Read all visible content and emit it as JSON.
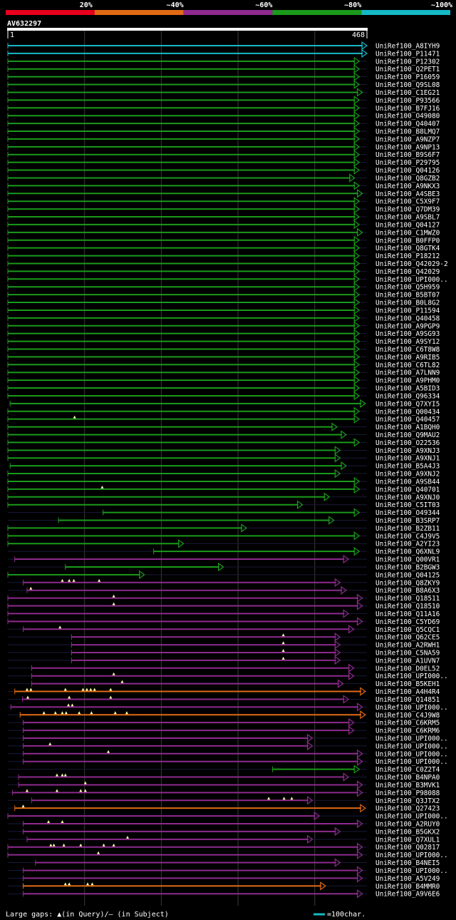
{
  "chart_data": {
    "type": "alignment-overview",
    "legend_labels": [
      "20%",
      "~40%",
      "~60%",
      "~80%",
      "~100%"
    ],
    "legend_colors": [
      "#e8001c",
      "#e06a14",
      "#8e2a8e",
      "#1b9a1b",
      "#16b9c6"
    ],
    "query": {
      "name": "AV632297",
      "start_label": "1",
      "end_label": "468",
      "length": 468
    },
    "footer": {
      "gaps_label": "Large gaps: ▲(in Query)/– (in Subject)",
      "scale_label": "=100char."
    },
    "hits": [
      {
        "name": "UniRef100_A8IYH9",
        "start": 0,
        "end": 468,
        "color": "cyan",
        "gaps": []
      },
      {
        "name": "UniRef100_P11471",
        "start": 0,
        "end": 468,
        "color": "cyan",
        "gaps": []
      },
      {
        "name": "UniRef100_P12302",
        "start": 0,
        "end": 458,
        "color": "green",
        "gaps": []
      },
      {
        "name": "UniRef100_Q2PET1",
        "start": 0,
        "end": 458,
        "color": "green",
        "gaps": []
      },
      {
        "name": "UniRef100_P16059",
        "start": 0,
        "end": 458,
        "color": "green",
        "gaps": []
      },
      {
        "name": "UniRef100_Q9SL08",
        "start": 0,
        "end": 458,
        "color": "green",
        "gaps": []
      },
      {
        "name": "UniRef100_C1EG21",
        "start": 0,
        "end": 462,
        "color": "green",
        "gaps": []
      },
      {
        "name": "UniRef100_P93566",
        "start": 0,
        "end": 458,
        "color": "green",
        "gaps": []
      },
      {
        "name": "UniRef100_B7FJ16",
        "start": 0,
        "end": 458,
        "color": "green",
        "gaps": []
      },
      {
        "name": "UniRef100_O49080",
        "start": 0,
        "end": 458,
        "color": "green",
        "gaps": []
      },
      {
        "name": "UniRef100_Q40407",
        "start": 0,
        "end": 458,
        "color": "green",
        "gaps": []
      },
      {
        "name": "UniRef100_B8LMQ7",
        "start": 0,
        "end": 458,
        "color": "green",
        "gaps": []
      },
      {
        "name": "UniRef100_A9NZP7",
        "start": 0,
        "end": 458,
        "color": "green",
        "gaps": []
      },
      {
        "name": "UniRef100_A9NP13",
        "start": 0,
        "end": 458,
        "color": "green",
        "gaps": []
      },
      {
        "name": "UniRef100_B9S6F7",
        "start": 0,
        "end": 458,
        "color": "green",
        "gaps": []
      },
      {
        "name": "UniRef100_P29795",
        "start": 0,
        "end": 458,
        "color": "green",
        "gaps": []
      },
      {
        "name": "UniRef100_Q04126",
        "start": 0,
        "end": 458,
        "color": "green",
        "gaps": []
      },
      {
        "name": "UniRef100_Q8GZB2",
        "start": 0,
        "end": 452,
        "color": "green",
        "gaps": []
      },
      {
        "name": "UniRef100_A9NKX3",
        "start": 0,
        "end": 458,
        "color": "green",
        "gaps": []
      },
      {
        "name": "UniRef100_A4SBE3",
        "start": 0,
        "end": 462,
        "color": "green",
        "gaps": []
      },
      {
        "name": "UniRef100_C5X9F7",
        "start": 0,
        "end": 458,
        "color": "green",
        "gaps": []
      },
      {
        "name": "UniRef100_Q7DM39",
        "start": 0,
        "end": 458,
        "color": "green",
        "gaps": []
      },
      {
        "name": "UniRef100_A9SBL7",
        "start": 0,
        "end": 458,
        "color": "green",
        "gaps": []
      },
      {
        "name": "UniRef100_Q04127",
        "start": 0,
        "end": 458,
        "color": "green",
        "gaps": []
      },
      {
        "name": "UniRef100_C1MWZ0",
        "start": 0,
        "end": 462,
        "color": "green",
        "gaps": []
      },
      {
        "name": "UniRef100_B0FFP0",
        "start": 0,
        "end": 458,
        "color": "green",
        "gaps": []
      },
      {
        "name": "UniRef100_Q8GTK4",
        "start": 0,
        "end": 458,
        "color": "green",
        "gaps": []
      },
      {
        "name": "UniRef100_P18212",
        "start": 0,
        "end": 458,
        "color": "green",
        "gaps": []
      },
      {
        "name": "UniRef100_Q42029-2",
        "start": 0,
        "end": 458,
        "color": "green",
        "gaps": []
      },
      {
        "name": "UniRef100_Q42029",
        "start": 0,
        "end": 458,
        "color": "green",
        "gaps": []
      },
      {
        "name": "UniRef100_UPI000..",
        "start": 0,
        "end": 458,
        "color": "green",
        "gaps": []
      },
      {
        "name": "UniRef100_Q5H959",
        "start": 0,
        "end": 458,
        "color": "green",
        "gaps": []
      },
      {
        "name": "UniRef100_B5BT07",
        "start": 0,
        "end": 458,
        "color": "green",
        "gaps": []
      },
      {
        "name": "UniRef100_B0L8G2",
        "start": 0,
        "end": 458,
        "color": "green",
        "gaps": []
      },
      {
        "name": "UniRef100_P11594",
        "start": 0,
        "end": 458,
        "color": "green",
        "gaps": []
      },
      {
        "name": "UniRef100_Q40458",
        "start": 0,
        "end": 458,
        "color": "green",
        "gaps": []
      },
      {
        "name": "UniRef100_A9PGP9",
        "start": 0,
        "end": 458,
        "color": "green",
        "gaps": []
      },
      {
        "name": "UniRef100_A9SG93",
        "start": 0,
        "end": 458,
        "color": "green",
        "gaps": []
      },
      {
        "name": "UniRef100_A9SY12",
        "start": 0,
        "end": 458,
        "color": "green",
        "gaps": []
      },
      {
        "name": "UniRef100_C6T8W8",
        "start": 0,
        "end": 458,
        "color": "green",
        "gaps": []
      },
      {
        "name": "UniRef100_A9RIB5",
        "start": 0,
        "end": 458,
        "color": "green",
        "gaps": []
      },
      {
        "name": "UniRef100_C6TL82",
        "start": 0,
        "end": 458,
        "color": "green",
        "gaps": []
      },
      {
        "name": "UniRef100_A7LNN9",
        "start": 0,
        "end": 458,
        "color": "green",
        "gaps": []
      },
      {
        "name": "UniRef100_A9PHM0",
        "start": 0,
        "end": 458,
        "color": "green",
        "gaps": []
      },
      {
        "name": "UniRef100_A5BID3",
        "start": 0,
        "end": 458,
        "color": "green",
        "gaps": []
      },
      {
        "name": "UniRef100_Q96334",
        "start": 0,
        "end": 458,
        "color": "green",
        "gaps": []
      },
      {
        "name": "UniRef100_Q7XYI5",
        "start": 3,
        "end": 466,
        "color": "green",
        "gaps": []
      },
      {
        "name": "UniRef100_Q00434",
        "start": 0,
        "end": 458,
        "color": "green",
        "gaps": []
      },
      {
        "name": "UniRef100_Q40457",
        "start": 0,
        "end": 458,
        "color": "green",
        "gaps": [
          87
        ]
      },
      {
        "name": "UniRef100_A1BQH0",
        "start": 0,
        "end": 429,
        "color": "green",
        "gaps": []
      },
      {
        "name": "UniRef100_Q9MAU2",
        "start": 0,
        "end": 441,
        "color": "green",
        "gaps": []
      },
      {
        "name": "UniRef100_O22536",
        "start": 0,
        "end": 458,
        "color": "green",
        "gaps": []
      },
      {
        "name": "UniRef100_A9XNJ3",
        "start": 0,
        "end": 433,
        "color": "green",
        "gaps": []
      },
      {
        "name": "UniRef100_A9XNJ1",
        "start": 0,
        "end": 433,
        "color": "green",
        "gaps": []
      },
      {
        "name": "UniRef100_B5A4J3",
        "start": 3,
        "end": 441,
        "color": "green",
        "gaps": []
      },
      {
        "name": "UniRef100_A9XNJ2",
        "start": 0,
        "end": 433,
        "color": "green",
        "gaps": []
      },
      {
        "name": "UniRef100_A9SB44",
        "start": 0,
        "end": 458,
        "color": "green",
        "gaps": []
      },
      {
        "name": "UniRef100_Q40701",
        "start": 0,
        "end": 458,
        "color": "green",
        "gaps": [
          123
        ]
      },
      {
        "name": "UniRef100_A9XNJ0",
        "start": 0,
        "end": 419,
        "color": "green",
        "gaps": []
      },
      {
        "name": "UniRef100_C5IT03",
        "start": 0,
        "end": 384,
        "color": "green",
        "gaps": []
      },
      {
        "name": "UniRef100_O49344",
        "start": 124,
        "end": 458,
        "color": "green",
        "gaps": []
      },
      {
        "name": "UniRef100_B3SRP7",
        "start": 66,
        "end": 425,
        "color": "green",
        "gaps": []
      },
      {
        "name": "UniRef100_B2ZB11",
        "start": 0,
        "end": 311,
        "color": "green",
        "gaps": []
      },
      {
        "name": "UniRef100_C4J9V5",
        "start": 0,
        "end": 458,
        "color": "green",
        "gaps": []
      },
      {
        "name": "UniRef100_A2YI23",
        "start": 0,
        "end": 229,
        "color": "green",
        "gaps": []
      },
      {
        "name": "UniRef100_Q6XNL9",
        "start": 190,
        "end": 458,
        "color": "green",
        "gaps": []
      },
      {
        "name": "UniRef100_Q00VR1",
        "start": 9,
        "end": 444,
        "color": "magenta",
        "gaps": []
      },
      {
        "name": "UniRef100_B2BGW3",
        "start": 75,
        "end": 281,
        "color": "green",
        "gaps": []
      },
      {
        "name": "UniRef100_Q04125",
        "start": 0,
        "end": 178,
        "color": "green",
        "gaps": []
      },
      {
        "name": "UniRef100_Q8ZKY9",
        "start": 20,
        "end": 433,
        "color": "magenta",
        "gaps": [
          71,
          80,
          86,
          119
        ]
      },
      {
        "name": "UniRef100_B8A6X3",
        "start": 25,
        "end": 441,
        "color": "magenta",
        "gaps": [
          30
        ]
      },
      {
        "name": "UniRef100_Q18511",
        "start": 0,
        "end": 462,
        "color": "magenta",
        "gaps": [
          138
        ]
      },
      {
        "name": "UniRef100_Q18510",
        "start": 0,
        "end": 462,
        "color": "magenta",
        "gaps": [
          138
        ]
      },
      {
        "name": "UniRef100_Q11A16",
        "start": 0,
        "end": 444,
        "color": "magenta",
        "gaps": []
      },
      {
        "name": "UniRef100_C5YD69",
        "start": 0,
        "end": 462,
        "color": "magenta",
        "gaps": []
      },
      {
        "name": "UniRef100_Q5CQC1",
        "start": 20,
        "end": 451,
        "color": "magenta",
        "gaps": [
          68
        ]
      },
      {
        "name": "UniRef100_Q62CE5",
        "start": 83,
        "end": 433,
        "color": "magenta",
        "gaps": [
          359
        ]
      },
      {
        "name": "UniRef100_A2RWH1",
        "start": 83,
        "end": 433,
        "color": "magenta",
        "gaps": [
          359
        ]
      },
      {
        "name": "UniRef100_C5NA59",
        "start": 83,
        "end": 433,
        "color": "magenta",
        "gaps": [
          359
        ]
      },
      {
        "name": "UniRef100_A1UVN7",
        "start": 83,
        "end": 433,
        "color": "magenta",
        "gaps": [
          359
        ]
      },
      {
        "name": "UniRef100_D0EL52",
        "start": 31,
        "end": 451,
        "color": "magenta",
        "gaps": []
      },
      {
        "name": "UniRef100_UPI000..",
        "start": 31,
        "end": 451,
        "color": "magenta",
        "gaps": [
          138
        ]
      },
      {
        "name": "UniRef100_B5KEH1",
        "start": 31,
        "end": 437,
        "color": "magenta",
        "gaps": [
          149
        ]
      },
      {
        "name": "UniRef100_A4H4R4",
        "start": 9,
        "end": 466,
        "color": "orange",
        "gaps": [
          25,
          30,
          75,
          98,
          103,
          108,
          113,
          134
        ]
      },
      {
        "name": "UniRef100_Q14851",
        "start": 19,
        "end": 444,
        "color": "magenta",
        "gaps": [
          26,
          80,
          134
        ]
      },
      {
        "name": "UniRef100_UPI000..",
        "start": 4,
        "end": 462,
        "color": "magenta",
        "gaps": [
          79,
          84
        ]
      },
      {
        "name": "UniRef100_C4J9W8",
        "start": 16,
        "end": 466,
        "color": "orange",
        "gaps": [
          47,
          62,
          71,
          76,
          93,
          109,
          140,
          155
        ]
      },
      {
        "name": "UniRef100_C6KRM5",
        "start": 20,
        "end": 451,
        "color": "magenta",
        "gaps": []
      },
      {
        "name": "UniRef100_C6KRM6",
        "start": 20,
        "end": 451,
        "color": "magenta",
        "gaps": []
      },
      {
        "name": "UniRef100_UPI000..",
        "start": 20,
        "end": 397,
        "color": "magenta",
        "gaps": []
      },
      {
        "name": "UniRef100_UPI000..",
        "start": 20,
        "end": 397,
        "color": "magenta",
        "gaps": [
          55
        ]
      },
      {
        "name": "UniRef100_UPI000..",
        "start": 20,
        "end": 462,
        "color": "magenta",
        "gaps": [
          131
        ]
      },
      {
        "name": "UniRef100_UPI000..",
        "start": 20,
        "end": 462,
        "color": "magenta",
        "gaps": []
      },
      {
        "name": "UniRef100_C0Z2T4",
        "start": 345,
        "end": 458,
        "color": "green",
        "gaps": []
      },
      {
        "name": "UniRef100_B4NPA0",
        "start": 14,
        "end": 444,
        "color": "magenta",
        "gaps": [
          64,
          71,
          75
        ]
      },
      {
        "name": "UniRef100_B3MVK1",
        "start": 14,
        "end": 462,
        "color": "magenta",
        "gaps": [
          101
        ]
      },
      {
        "name": "UniRef100_P98088",
        "start": 6,
        "end": 462,
        "color": "magenta",
        "gaps": [
          25,
          64,
          95,
          101
        ]
      },
      {
        "name": "UniRef100_Q3JTX2",
        "start": 31,
        "end": 397,
        "color": "magenta",
        "gaps": [
          340,
          360,
          370
        ]
      },
      {
        "name": "UniRef100_Q27423",
        "start": 9,
        "end": 466,
        "color": "orange",
        "gaps": [
          20
        ]
      },
      {
        "name": "UniRef100_UPI000..",
        "start": 0,
        "end": 406,
        "color": "magenta",
        "gaps": []
      },
      {
        "name": "UniRef100_A2RUY0",
        "start": 20,
        "end": 462,
        "color": "magenta",
        "gaps": [
          53,
          71
        ]
      },
      {
        "name": "UniRef100_B5GKX2",
        "start": 20,
        "end": 433,
        "color": "magenta",
        "gaps": []
      },
      {
        "name": "UniRef100_Q7XUL1",
        "start": 25,
        "end": 397,
        "color": "magenta",
        "gaps": [
          156
        ]
      },
      {
        "name": "UniRef100_Q02817",
        "start": 0,
        "end": 462,
        "color": "magenta",
        "gaps": [
          56,
          60,
          73,
          95,
          125,
          138
        ]
      },
      {
        "name": "UniRef100_UPI000..",
        "start": 0,
        "end": 462,
        "color": "magenta",
        "gaps": [
          118
        ]
      },
      {
        "name": "UniRef100_B4NEI5",
        "start": 36,
        "end": 433,
        "color": "magenta",
        "gaps": []
      },
      {
        "name": "UniRef100_UPI000..",
        "start": 20,
        "end": 462,
        "color": "magenta",
        "gaps": []
      },
      {
        "name": "UniRef100_A5V249",
        "start": 20,
        "end": 462,
        "color": "magenta",
        "gaps": []
      },
      {
        "name": "UniRef100_B4MMR0",
        "start": 20,
        "end": 414,
        "color": "orange",
        "gaps": [
          75,
          80,
          104,
          110
        ]
      },
      {
        "name": "UniRef100_A9V6E6",
        "start": 20,
        "end": 462,
        "color": "magenta",
        "gaps": []
      }
    ]
  }
}
